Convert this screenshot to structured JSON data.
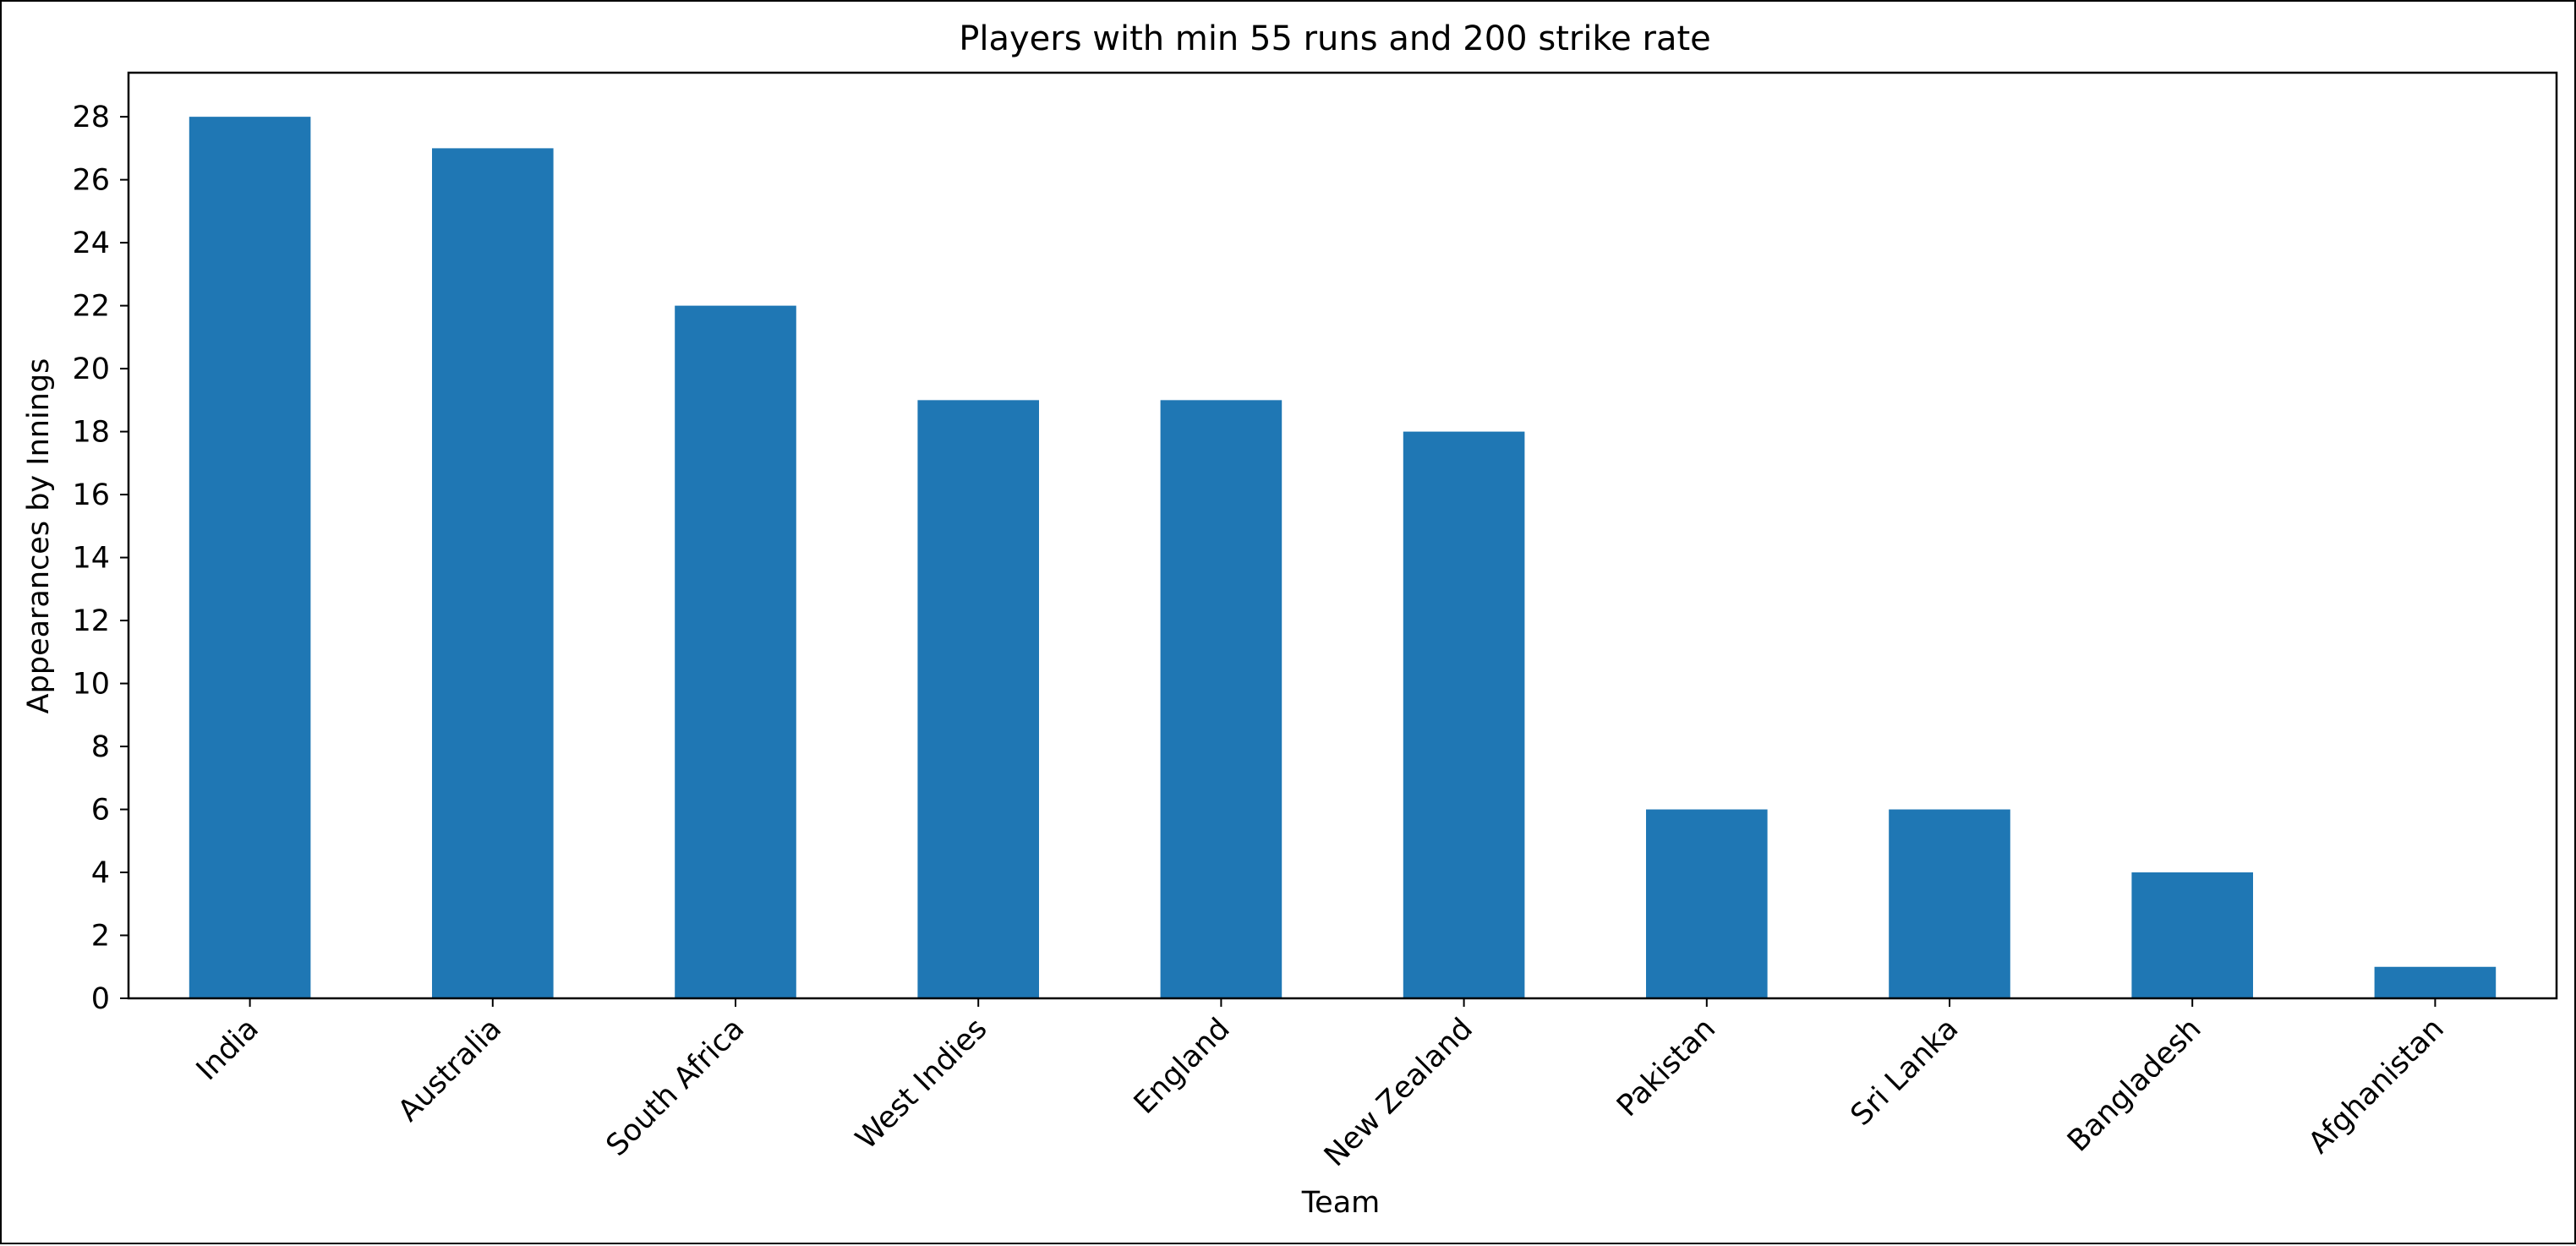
{
  "chart_data": {
    "type": "bar",
    "title": "Players with min 55 runs and 200 strike rate",
    "xlabel": "Team",
    "ylabel": "Appearances by Innings",
    "categories": [
      "India",
      "Australia",
      "South Africa",
      "West Indies",
      "England",
      "New Zealand",
      "Pakistan",
      "Sri Lanka",
      "Bangladesh",
      "Afghanistan"
    ],
    "values": [
      28,
      27,
      22,
      19,
      19,
      18,
      6,
      6,
      4,
      1
    ],
    "ylim": [
      0,
      29.4
    ],
    "yticks": [
      0,
      2,
      4,
      6,
      8,
      10,
      12,
      14,
      16,
      18,
      20,
      22,
      24,
      26,
      28
    ],
    "grid": false,
    "legend": "none",
    "bar_color": "#1f77b4"
  }
}
